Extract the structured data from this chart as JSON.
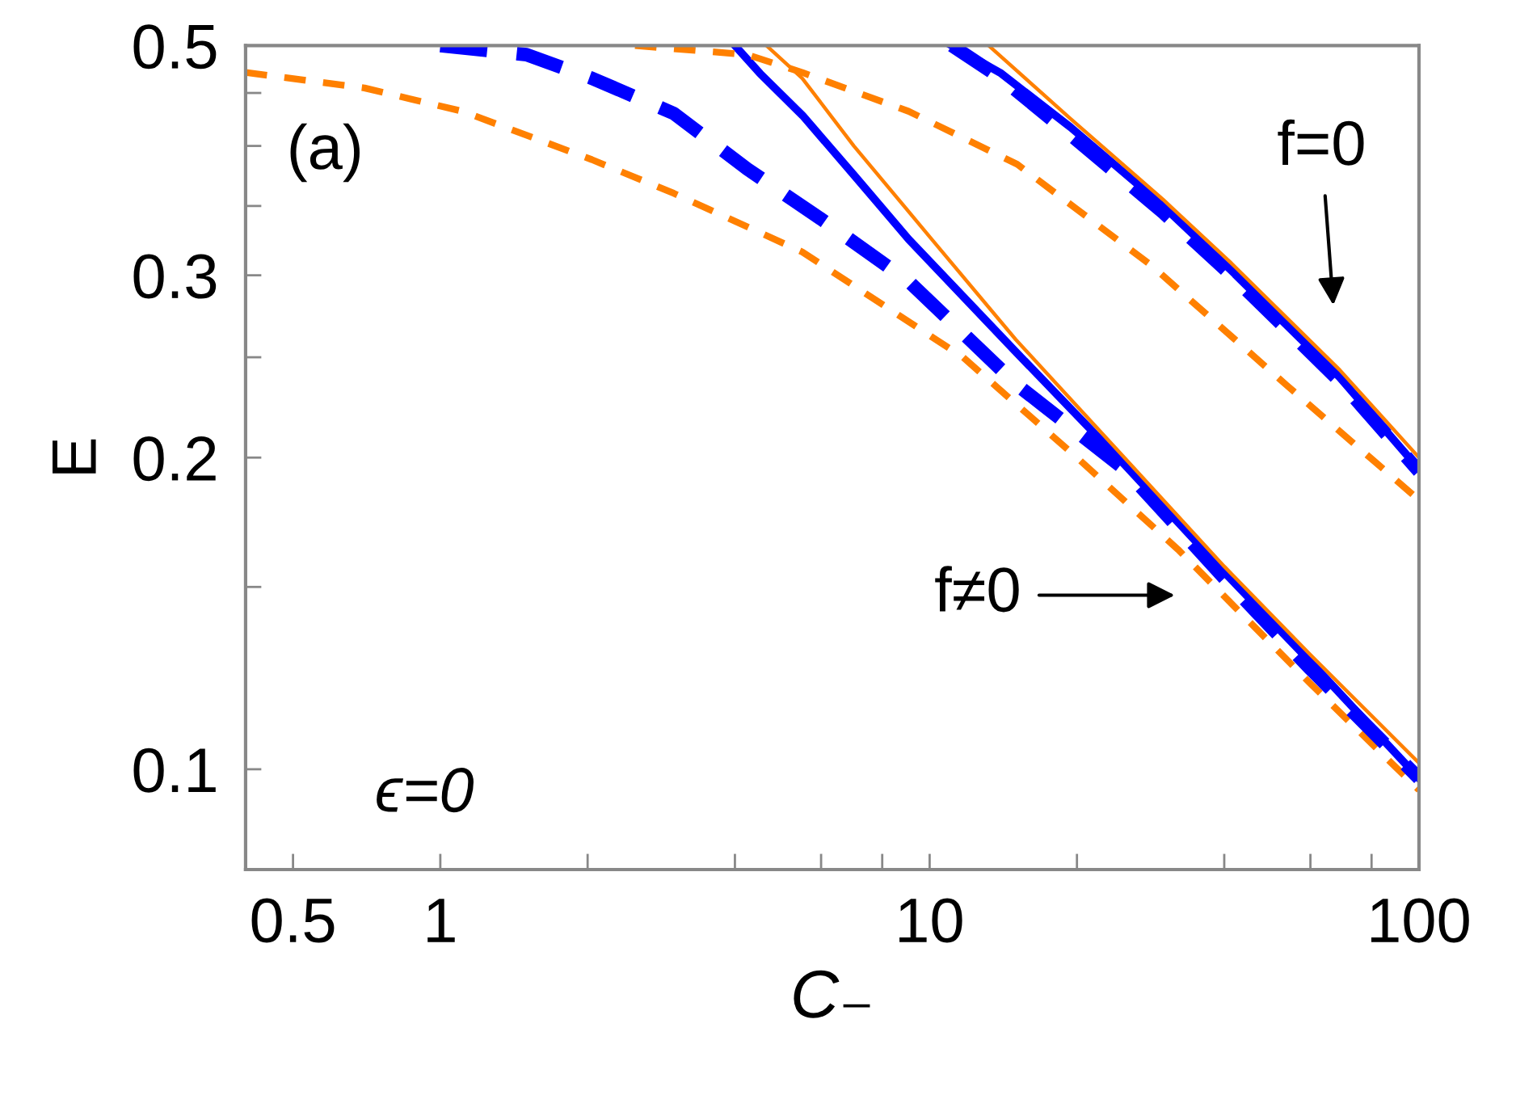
{
  "chart_data": {
    "type": "line",
    "xlabel": "C₋",
    "ylabel": "E",
    "log": "xy",
    "grid": false,
    "marker": "none",
    "xlim": [
      0.4,
      100
    ],
    "ylim": [
      0.08,
      0.5
    ],
    "xticks": [
      0.5,
      1,
      {
        "value": 2,
        "label": null
      },
      {
        "value": 4,
        "label": null
      },
      {
        "value": 6,
        "label": null
      },
      {
        "value": 8,
        "label": null
      },
      10,
      {
        "value": 20,
        "label": null
      },
      {
        "value": 40,
        "label": null
      },
      {
        "value": 60,
        "label": null
      },
      {
        "value": 80,
        "label": null
      },
      100
    ],
    "yticks": [
      0.1,
      {
        "value": 0.15,
        "label": null
      },
      0.2,
      {
        "value": 0.25,
        "label": null
      },
      0.3,
      {
        "value": 0.35,
        "label": null
      },
      {
        "value": 0.4,
        "label": null
      },
      {
        "value": 0.45,
        "label": null
      },
      0.5
    ],
    "series": [
      {
        "color": "#ff8000",
        "line_style": "dashed",
        "x": [
          0.4,
          0.7,
          1.11,
          2.04,
          3,
          5.49,
          11.7,
          20,
          32.2,
          60,
          100
        ],
        "values": [
          0.471,
          0.455,
          0.432,
          0.388,
          0.36,
          0.316,
          0.25,
          0.2,
          0.163,
          0.121,
          0.0955
        ]
      },
      {
        "color": "#0000ff",
        "line_style": "dashed",
        "x": [
          1.0,
          1.5,
          2.04,
          3,
          4.24,
          6,
          9.06,
          15.1,
          25,
          40,
          60,
          100
        ],
        "values": [
          0.5,
          0.49,
          0.465,
          0.43,
          0.38,
          0.34,
          0.296,
          0.235,
          0.195,
          0.153,
          0.125,
          0.098
        ]
      },
      {
        "color": "#0000ff",
        "line_style": "solid",
        "x": [
          4.0,
          4.5,
          5.5,
          7,
          9.06,
          15,
          25,
          40,
          60,
          100
        ],
        "values": [
          0.5,
          0.47,
          0.428,
          0.375,
          0.325,
          0.253,
          0.197,
          0.155,
          0.127,
          0.098
        ]
      },
      {
        "color": "#ff8000",
        "line_style": "solid",
        "x": [
          4.64,
          5.49,
          7,
          10.1,
          15,
          25,
          40,
          60,
          100
        ],
        "values": [
          0.5,
          0.465,
          0.4,
          0.325,
          0.26,
          0.2,
          0.157,
          0.129,
          0.1014
        ]
      },
      {
        "color": "#ff8000",
        "line_style": "dashed",
        "x": [
          2.5,
          4.24,
          5.49,
          9.06,
          15.1,
          28.3,
          53.6,
          100
        ],
        "values": [
          0.5,
          0.49,
          0.471,
          0.432,
          0.384,
          0.307,
          0.235,
          0.182
        ]
      },
      {
        "color": "#0000ff",
        "line_style": "dashed",
        "x": [
          11.1,
          14,
          19.4,
          30,
          41.4,
          68.9,
          100
        ],
        "values": [
          0.5,
          0.465,
          0.41,
          0.345,
          0.3,
          0.237,
          0.194
        ]
      },
      {
        "color": "#0000ff",
        "line_style": "solid",
        "x": [
          11.1,
          14,
          19.4,
          30,
          41.4,
          68.9,
          100
        ],
        "values": [
          0.5,
          0.47,
          0.417,
          0.35,
          0.303,
          0.239,
          0.195
        ]
      },
      {
        "color": "#ff8000",
        "line_style": "solid",
        "x": [
          13.2,
          19.4,
          30,
          41.4,
          68.9,
          100
        ],
        "values": [
          0.5,
          0.425,
          0.355,
          0.308,
          0.243,
          0.2
        ]
      }
    ],
    "annotations": [
      "(a)",
      "ϵ=0",
      "f=0",
      "f≠0"
    ]
  }
}
